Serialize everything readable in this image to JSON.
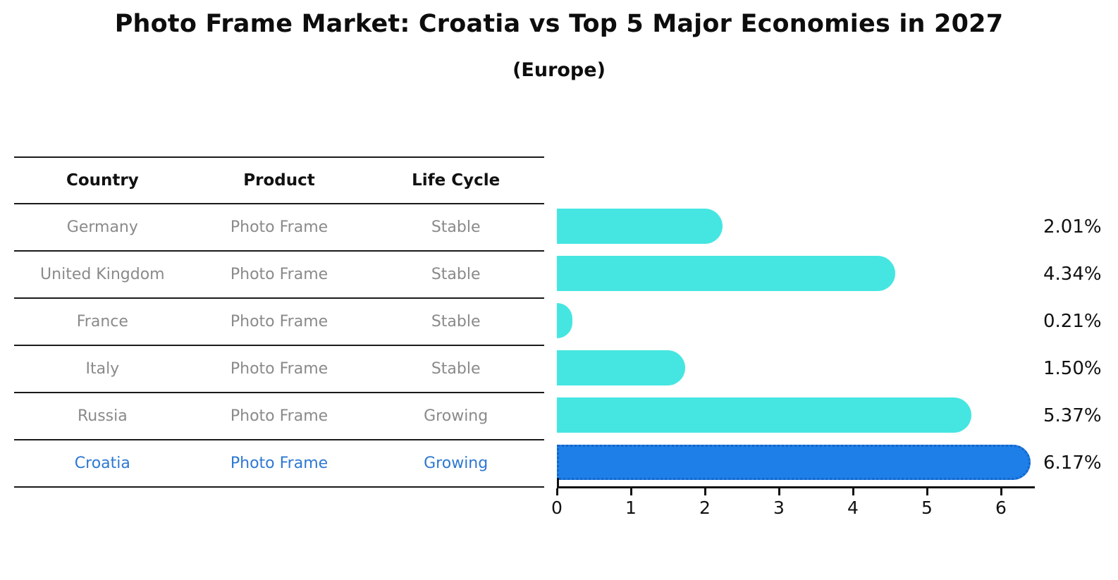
{
  "header": {
    "title": "Photo Frame Market: Croatia vs Top 5 Major Economies in 2027",
    "subtitle": "(Europe)"
  },
  "table": {
    "headers": [
      "Country",
      "Product",
      "Life Cycle"
    ],
    "rows": [
      {
        "country": "Germany",
        "product": "Photo Frame",
        "life_cycle": "Stable",
        "highlight": false
      },
      {
        "country": "United Kingdom",
        "product": "Photo Frame",
        "life_cycle": "Stable",
        "highlight": false
      },
      {
        "country": "France",
        "product": "Photo Frame",
        "life_cycle": "Stable",
        "highlight": false
      },
      {
        "country": "Italy",
        "product": "Photo Frame",
        "life_cycle": "Stable",
        "highlight": false
      },
      {
        "country": "Russia",
        "product": "Photo Frame",
        "life_cycle": "Growing",
        "highlight": false
      },
      {
        "country": "Croatia",
        "product": "Photo Frame",
        "life_cycle": "Growing",
        "highlight": true
      }
    ]
  },
  "chart_data": {
    "type": "bar",
    "orientation": "horizontal",
    "title": "Photo Frame Market: Croatia vs Top 5 Major Economies in 2027",
    "subtitle": "(Europe)",
    "categories": [
      "Germany",
      "United Kingdom",
      "France",
      "Italy",
      "Russia",
      "Croatia"
    ],
    "values": [
      2.01,
      4.34,
      0.21,
      1.5,
      5.37,
      6.17
    ],
    "value_labels": [
      "2.01%",
      "4.34%",
      "0.21%",
      "1.50%",
      "5.37%",
      "6.17%"
    ],
    "xticks": [
      "0",
      "1",
      "2",
      "3",
      "4",
      "5",
      "6"
    ],
    "xlim": [
      0,
      6.45
    ],
    "xlabel": "",
    "ylabel": "",
    "grid": false,
    "legend": false,
    "highlight_index": 5,
    "colors": {
      "bar": "#45E6E1",
      "highlight_bar": "#1E7FE8",
      "highlight_border": "#1565C8",
      "highlight_text": "#2E78D2",
      "row_text": "#8a8a8a",
      "axis": "#111111"
    }
  }
}
